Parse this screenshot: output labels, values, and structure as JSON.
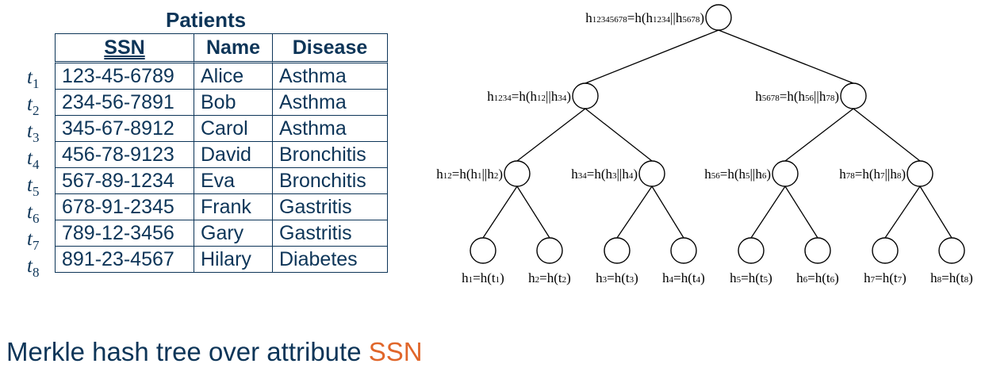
{
  "table": {
    "title": "Patients",
    "columns": [
      "SSN",
      "Name",
      "Disease"
    ],
    "rows": [
      {
        "label": "t",
        "sub": "1",
        "ssn": "123-45-6789",
        "name": "Alice",
        "disease": "Asthma"
      },
      {
        "label": "t",
        "sub": "2",
        "ssn": "234-56-7891",
        "name": "Bob",
        "disease": "Asthma"
      },
      {
        "label": "t",
        "sub": "3",
        "ssn": "345-67-8912",
        "name": "Carol",
        "disease": "Asthma"
      },
      {
        "label": "t",
        "sub": "4",
        "ssn": "456-78-9123",
        "name": "David",
        "disease": "Bronchitis"
      },
      {
        "label": "t",
        "sub": "5",
        "ssn": "567-89-1234",
        "name": "Eva",
        "disease": "Bronchitis"
      },
      {
        "label": "t",
        "sub": "6",
        "ssn": "678-91-2345",
        "name": "Frank",
        "disease": "Gastritis"
      },
      {
        "label": "t",
        "sub": "7",
        "ssn": "789-12-3456",
        "name": "Gary",
        "disease": "Gastritis"
      },
      {
        "label": "t",
        "sub": "8",
        "ssn": "891-23-4567",
        "name": "Hilary",
        "disease": "Diabetes"
      }
    ]
  },
  "tree": {
    "root": {
      "id": "h12345678",
      "label": "h12345678=h(h1234||h5678)"
    },
    "level1": [
      {
        "id": "h1234",
        "label": "h1234=h(h12||h34)"
      },
      {
        "id": "h5678",
        "label": "h5678=h(h56||h78)"
      }
    ],
    "level2": [
      {
        "id": "h12",
        "label": "h12=h(h1||h2)"
      },
      {
        "id": "h34",
        "label": "h34=h(h3||h4)"
      },
      {
        "id": "h56",
        "label": "h56=h(h5||h6)"
      },
      {
        "id": "h78",
        "label": "h78=h(h7||h8)"
      }
    ],
    "leaves": [
      {
        "id": "h1",
        "label": "h1=h(t1)"
      },
      {
        "id": "h2",
        "label": "h2=h(t2)"
      },
      {
        "id": "h3",
        "label": "h3=h(t3)"
      },
      {
        "id": "h4",
        "label": "h4=h(t4)"
      },
      {
        "id": "h5",
        "label": "h5=h(t5)"
      },
      {
        "id": "h6",
        "label": "h6=h(t6)"
      },
      {
        "id": "h7",
        "label": "h7=h(t7)"
      },
      {
        "id": "h8",
        "label": "h8=h(t8)"
      }
    ]
  },
  "caption": {
    "text": "Merkle hash tree over attribute",
    "highlight": "SSN",
    "highlight_color": "#e0662a"
  },
  "colors": {
    "primary": "#0d3558"
  }
}
